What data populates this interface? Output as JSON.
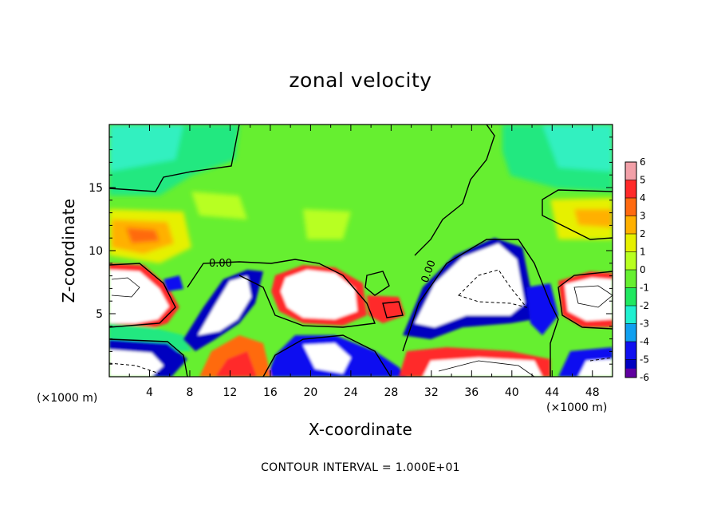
{
  "chart_data": {
    "type": "heatmap",
    "title": "zonal velocity",
    "xlabel": "X-coordinate",
    "ylabel": "Z-coordinate",
    "x_unit": "(×1000 m)",
    "x_unit_right": "(×1000 m)",
    "xlim": [
      0,
      50
    ],
    "ylim": [
      0,
      20
    ],
    "x_ticks": [
      4,
      8,
      12,
      16,
      20,
      24,
      28,
      32,
      36,
      40,
      44,
      48
    ],
    "y_ticks": [
      5,
      10,
      15
    ],
    "colorbar": {
      "min": -6,
      "max": 6,
      "ticks": [
        6,
        5,
        4,
        3,
        2,
        1,
        0,
        -1,
        -2,
        -3,
        -4,
        -5,
        -6
      ],
      "colors": [
        "#f2a0a8",
        "#ff2a2a",
        "#ff6a10",
        "#ffb000",
        "#e6f000",
        "#b8ff20",
        "#66ef30",
        "#20e860",
        "#20f0d0",
        "#10a0f0",
        "#1010f0",
        "#0000c0",
        "#6000a0"
      ]
    },
    "contour_interval": "CONTOUR INTERVAL = 1.000E+01",
    "contour_labels": [
      "0.00",
      "0.00"
    ],
    "background_value_color": "#66ef30"
  }
}
